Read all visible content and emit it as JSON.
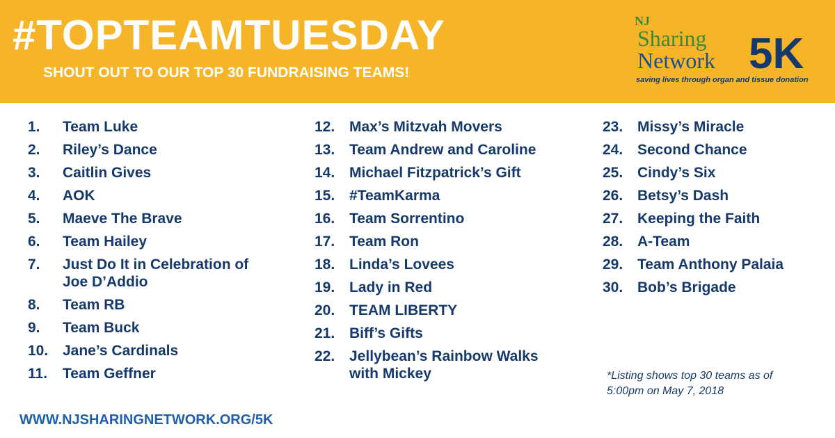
{
  "header": {
    "title": "#TOPTEAMTUESDAY",
    "subtitle": "SHOUT OUT TO OUR TOP 30 FUNDRAISING TEAMS!"
  },
  "logo": {
    "nj": "NJ",
    "sharing": "Sharing",
    "network": "Network",
    "event": "5K",
    "tagline": "saving lives through organ and tissue donation"
  },
  "columns": [
    [
      {
        "number": "1.",
        "name": "Team Luke"
      },
      {
        "number": "2.",
        "name": "Riley’s Dance"
      },
      {
        "number": "3.",
        "name": "Caitlin Gives"
      },
      {
        "number": "4.",
        "name": "AOK"
      },
      {
        "number": "5.",
        "name": "Maeve The Brave"
      },
      {
        "number": "6.",
        "name": "Team Hailey"
      },
      {
        "number": "7.",
        "name": "Just Do It in Celebration of Joe D’Addio"
      },
      {
        "number": "8.",
        "name": "Team RB"
      },
      {
        "number": "9.",
        "name": "Team Buck"
      },
      {
        "number": "10.",
        "name": "Jane’s Cardinals"
      },
      {
        "number": "11.",
        "name": "Team Geffner"
      }
    ],
    [
      {
        "number": "12.",
        "name": "Max’s Mitzvah Movers"
      },
      {
        "number": "13.",
        "name": "Team Andrew and Caroline"
      },
      {
        "number": "14.",
        "name": "Michael Fitzpatrick’s Gift"
      },
      {
        "number": "15.",
        "name": "#TeamKarma"
      },
      {
        "number": "16.",
        "name": "Team Sorrentino"
      },
      {
        "number": "17.",
        "name": "Team Ron"
      },
      {
        "number": "18.",
        "name": "Linda’s Lovees"
      },
      {
        "number": "19.",
        "name": "Lady in Red"
      },
      {
        "number": "20.",
        "name": "TEAM LIBERTY"
      },
      {
        "number": "21.",
        "name": "Biff’s Gifts"
      },
      {
        "number": "22.",
        "name": "Jellybean’s Rainbow Walks with Mickey"
      }
    ],
    [
      {
        "number": "23.",
        "name": "Missy’s Miracle"
      },
      {
        "number": "24.",
        "name": "Second Chance"
      },
      {
        "number": "25.",
        "name": "Cindy’s Six"
      },
      {
        "number": "26.",
        "name": "Betsy’s Dash"
      },
      {
        "number": "27.",
        "name": "Keeping the Faith"
      },
      {
        "number": "28.",
        "name": "A-Team"
      },
      {
        "number": "29.",
        "name": "Team Anthony Palaia"
      },
      {
        "number": "30.",
        "name": "Bob’s Brigade"
      }
    ]
  ],
  "footnote": "*Listing shows top 30 teams as of 5:00pm on May 7, 2018",
  "url": "WWW.NJSHARINGNETWORK.ORG/5K"
}
